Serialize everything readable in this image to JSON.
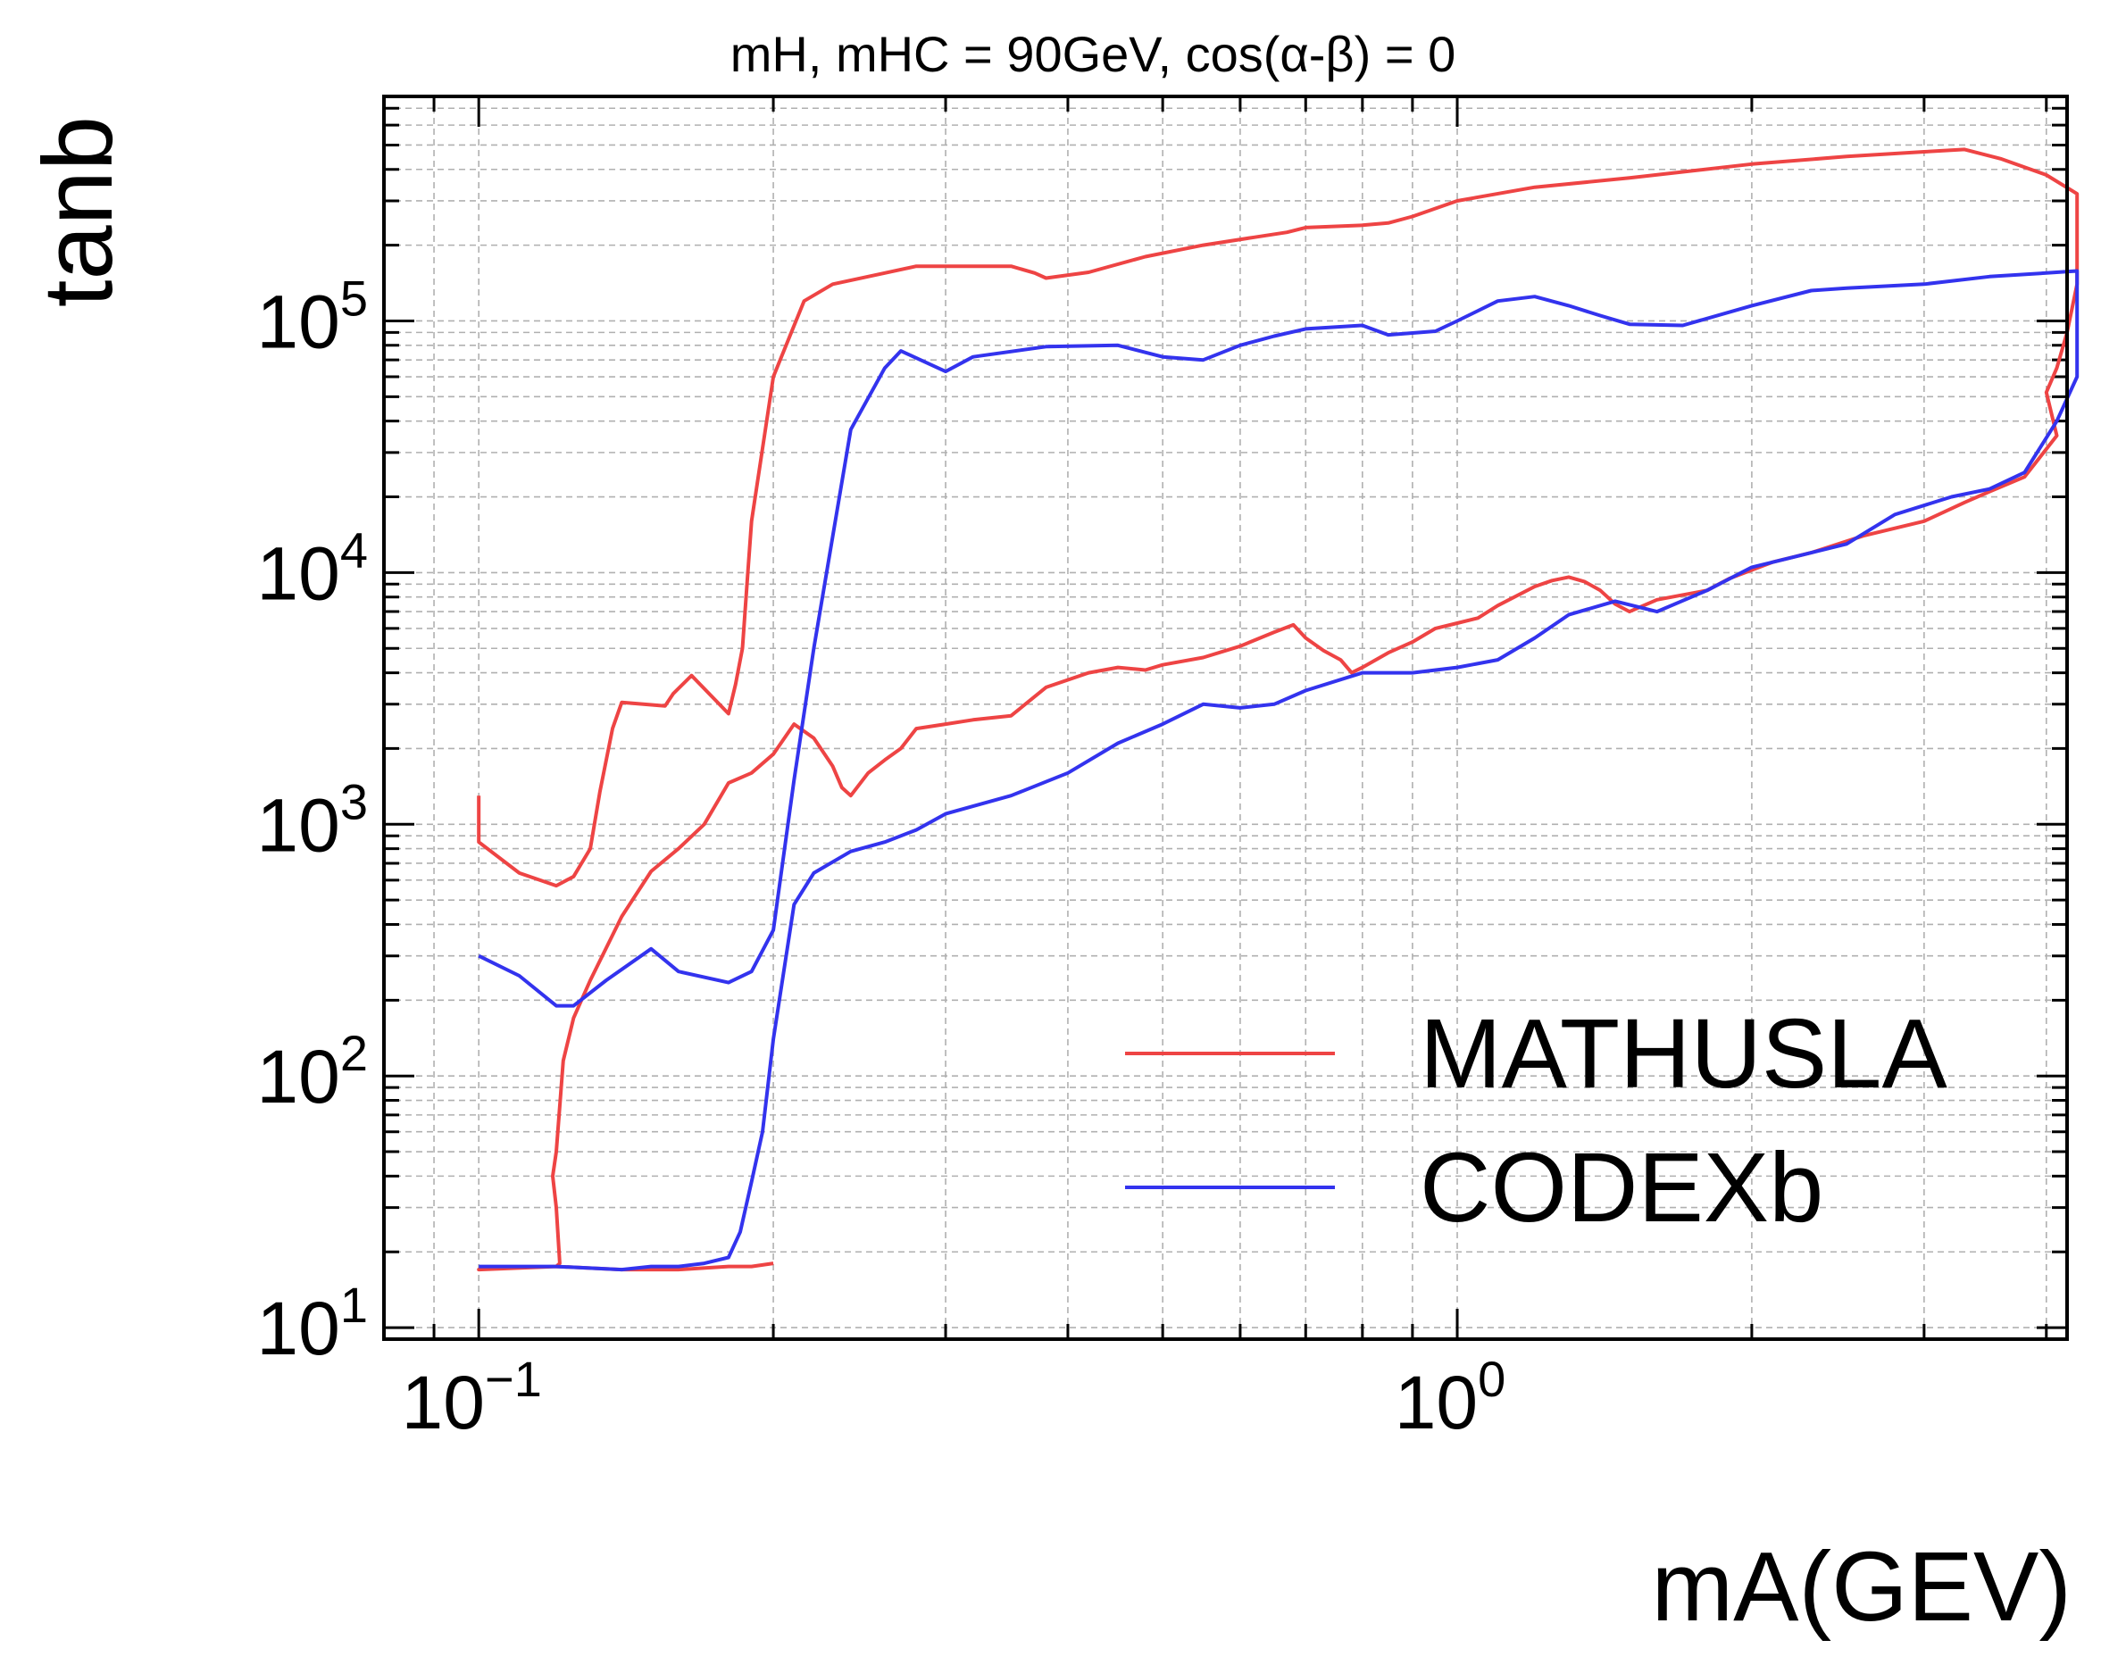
{
  "chart_data": {
    "type": "line",
    "title": "mH, mHC = 90GeV, cos(α-β) = 0",
    "xlabel": "mA(GEV)",
    "ylabel": "tanb",
    "xscale": "log",
    "yscale": "log",
    "xlim": [
      0.08,
      4.2
    ],
    "ylim": [
      9,
      780000
    ],
    "grid": true,
    "legend_position": "lower-right",
    "x_ticks": [
      {
        "value": 0.1,
        "base": "10",
        "exp": "−1"
      },
      {
        "value": 1,
        "base": "10",
        "exp": "0"
      }
    ],
    "y_ticks": [
      {
        "value": 10,
        "base": "10",
        "exp": "1"
      },
      {
        "value": 100,
        "base": "10",
        "exp": "2"
      },
      {
        "value": 1000,
        "base": "10",
        "exp": "3"
      },
      {
        "value": 10000,
        "base": "10",
        "exp": "4"
      },
      {
        "value": 100000,
        "base": "10",
        "exp": "5"
      }
    ],
    "series": [
      {
        "name": "MATHUSLA",
        "color": "#ee4444",
        "points": [
          [
            0.1,
            1300
          ],
          [
            0.1,
            850
          ],
          [
            0.11,
            640
          ],
          [
            0.12,
            570
          ],
          [
            0.125,
            620
          ],
          [
            0.13,
            800
          ],
          [
            0.133,
            1350
          ],
          [
            0.137,
            2400
          ],
          [
            0.14,
            3050
          ],
          [
            0.155,
            2950
          ],
          [
            0.158,
            3300
          ],
          [
            0.165,
            3900
          ],
          [
            0.18,
            2750
          ],
          [
            0.183,
            3600
          ],
          [
            0.186,
            5000
          ],
          [
            0.188,
            9000
          ],
          [
            0.19,
            16000
          ],
          [
            0.2,
            60000
          ],
          [
            0.215,
            120000
          ],
          [
            0.23,
            140000
          ],
          [
            0.26,
            155000
          ],
          [
            0.28,
            165000
          ],
          [
            0.35,
            165000
          ],
          [
            0.37,
            155000
          ],
          [
            0.38,
            148000
          ],
          [
            0.42,
            156000
          ],
          [
            0.48,
            180000
          ],
          [
            0.55,
            200000
          ],
          [
            0.62,
            215000
          ],
          [
            0.67,
            225000
          ],
          [
            0.7,
            235000
          ],
          [
            0.8,
            240000
          ],
          [
            0.85,
            245000
          ],
          [
            0.9,
            260000
          ],
          [
            1.0,
            300000
          ],
          [
            1.2,
            340000
          ],
          [
            1.5,
            370000
          ],
          [
            2.0,
            420000
          ],
          [
            2.5,
            450000
          ],
          [
            3.0,
            470000
          ],
          [
            3.3,
            480000
          ],
          [
            3.6,
            440000
          ],
          [
            4.0,
            380000
          ],
          [
            4.3,
            320000
          ],
          [
            4.3,
            140000
          ],
          [
            4.2,
            90000
          ],
          [
            4.1,
            65000
          ],
          [
            4.0,
            52000
          ],
          [
            4.1,
            35000
          ],
          [
            3.8,
            24000
          ],
          [
            3.5,
            21000
          ],
          [
            3.3,
            19000
          ],
          [
            3.0,
            16000
          ],
          [
            2.6,
            14000
          ],
          [
            2.3,
            12000
          ],
          [
            2.1,
            11000
          ],
          [
            1.9,
            9500
          ],
          [
            1.8,
            8500
          ],
          [
            1.6,
            7800
          ],
          [
            1.5,
            7000
          ],
          [
            1.45,
            7500
          ],
          [
            1.4,
            8500
          ],
          [
            1.35,
            9200
          ],
          [
            1.3,
            9600
          ],
          [
            1.25,
            9300
          ],
          [
            1.2,
            8800
          ],
          [
            1.1,
            7400
          ],
          [
            1.05,
            6600
          ],
          [
            1.0,
            6300
          ],
          [
            0.95,
            6000
          ],
          [
            0.9,
            5300
          ],
          [
            0.85,
            4800
          ],
          [
            0.8,
            4200
          ],
          [
            0.78,
            4000
          ],
          [
            0.76,
            4500
          ],
          [
            0.73,
            4900
          ],
          [
            0.7,
            5500
          ],
          [
            0.68,
            6200
          ],
          [
            0.65,
            5800
          ],
          [
            0.6,
            5100
          ],
          [
            0.55,
            4600
          ],
          [
            0.5,
            4300
          ],
          [
            0.48,
            4100
          ],
          [
            0.45,
            4200
          ],
          [
            0.42,
            4000
          ],
          [
            0.38,
            3500
          ],
          [
            0.35,
            2700
          ],
          [
            0.32,
            2600
          ],
          [
            0.3,
            2500
          ],
          [
            0.28,
            2400
          ],
          [
            0.27,
            2000
          ],
          [
            0.26,
            1800
          ],
          [
            0.25,
            1600
          ],
          [
            0.24,
            1300
          ],
          [
            0.235,
            1400
          ],
          [
            0.23,
            1700
          ],
          [
            0.22,
            2200
          ],
          [
            0.21,
            2500
          ],
          [
            0.2,
            1900
          ],
          [
            0.19,
            1600
          ],
          [
            0.18,
            1460
          ],
          [
            0.17,
            1000
          ],
          [
            0.16,
            800
          ],
          [
            0.15,
            650
          ],
          [
            0.14,
            430
          ],
          [
            0.13,
            240
          ],
          [
            0.125,
            170
          ],
          [
            0.122,
            115
          ],
          [
            0.12,
            50
          ],
          [
            0.119,
            40
          ],
          [
            0.12,
            30
          ],
          [
            0.121,
            18
          ],
          [
            0.12,
            17.5
          ],
          [
            0.1,
            17
          ],
          [
            0.12,
            17.5
          ],
          [
            0.14,
            17
          ],
          [
            0.16,
            17
          ],
          [
            0.18,
            17.5
          ],
          [
            0.19,
            17.5
          ],
          [
            0.2,
            18
          ]
        ]
      },
      {
        "name": "CODEXb",
        "color": "#3333ee",
        "points": [
          [
            0.1,
            300
          ],
          [
            0.11,
            250
          ],
          [
            0.12,
            190
          ],
          [
            0.125,
            190
          ],
          [
            0.135,
            240
          ],
          [
            0.15,
            320
          ],
          [
            0.16,
            260
          ],
          [
            0.18,
            235
          ],
          [
            0.19,
            260
          ],
          [
            0.2,
            380
          ],
          [
            0.21,
            1500
          ],
          [
            0.22,
            5000
          ],
          [
            0.24,
            37000
          ],
          [
            0.26,
            65000
          ],
          [
            0.27,
            76000
          ],
          [
            0.3,
            63000
          ],
          [
            0.32,
            72000
          ],
          [
            0.38,
            79000
          ],
          [
            0.45,
            80000
          ],
          [
            0.5,
            72000
          ],
          [
            0.55,
            70000
          ],
          [
            0.6,
            80000
          ],
          [
            0.65,
            87000
          ],
          [
            0.7,
            93000
          ],
          [
            0.8,
            96000
          ],
          [
            0.85,
            88000
          ],
          [
            0.95,
            91000
          ],
          [
            1.0,
            100000
          ],
          [
            1.1,
            120000
          ],
          [
            1.2,
            125000
          ],
          [
            1.3,
            115000
          ],
          [
            1.4,
            105000
          ],
          [
            1.5,
            97000
          ],
          [
            1.7,
            96000
          ],
          [
            2.0,
            115000
          ],
          [
            2.3,
            132000
          ],
          [
            2.5,
            135000
          ],
          [
            3.0,
            140000
          ],
          [
            3.5,
            150000
          ],
          [
            4.0,
            155000
          ],
          [
            4.3,
            158000
          ],
          [
            4.3,
            60000
          ],
          [
            4.1,
            40000
          ],
          [
            3.8,
            25000
          ],
          [
            3.5,
            21500
          ],
          [
            3.2,
            20000
          ],
          [
            2.8,
            17000
          ],
          [
            2.5,
            13000
          ],
          [
            2.2,
            11500
          ],
          [
            2.0,
            10500
          ],
          [
            1.8,
            8500
          ],
          [
            1.6,
            7000
          ],
          [
            1.45,
            7700
          ],
          [
            1.3,
            6800
          ],
          [
            1.2,
            5500
          ],
          [
            1.1,
            4500
          ],
          [
            1.0,
            4200
          ],
          [
            0.9,
            4000
          ],
          [
            0.85,
            4000
          ],
          [
            0.8,
            4000
          ],
          [
            0.7,
            3400
          ],
          [
            0.65,
            3000
          ],
          [
            0.6,
            2900
          ],
          [
            0.55,
            3000
          ],
          [
            0.5,
            2500
          ],
          [
            0.45,
            2100
          ],
          [
            0.4,
            1600
          ],
          [
            0.35,
            1300
          ],
          [
            0.3,
            1100
          ],
          [
            0.28,
            950
          ],
          [
            0.26,
            850
          ],
          [
            0.24,
            780
          ],
          [
            0.22,
            640
          ],
          [
            0.21,
            480
          ],
          [
            0.2,
            140
          ],
          [
            0.195,
            60
          ],
          [
            0.19,
            38
          ],
          [
            0.185,
            24
          ],
          [
            0.18,
            19
          ],
          [
            0.17,
            18
          ],
          [
            0.16,
            17.5
          ],
          [
            0.15,
            17.5
          ],
          [
            0.14,
            17
          ],
          [
            0.12,
            17.5
          ],
          [
            0.1,
            17.5
          ]
        ]
      }
    ]
  }
}
